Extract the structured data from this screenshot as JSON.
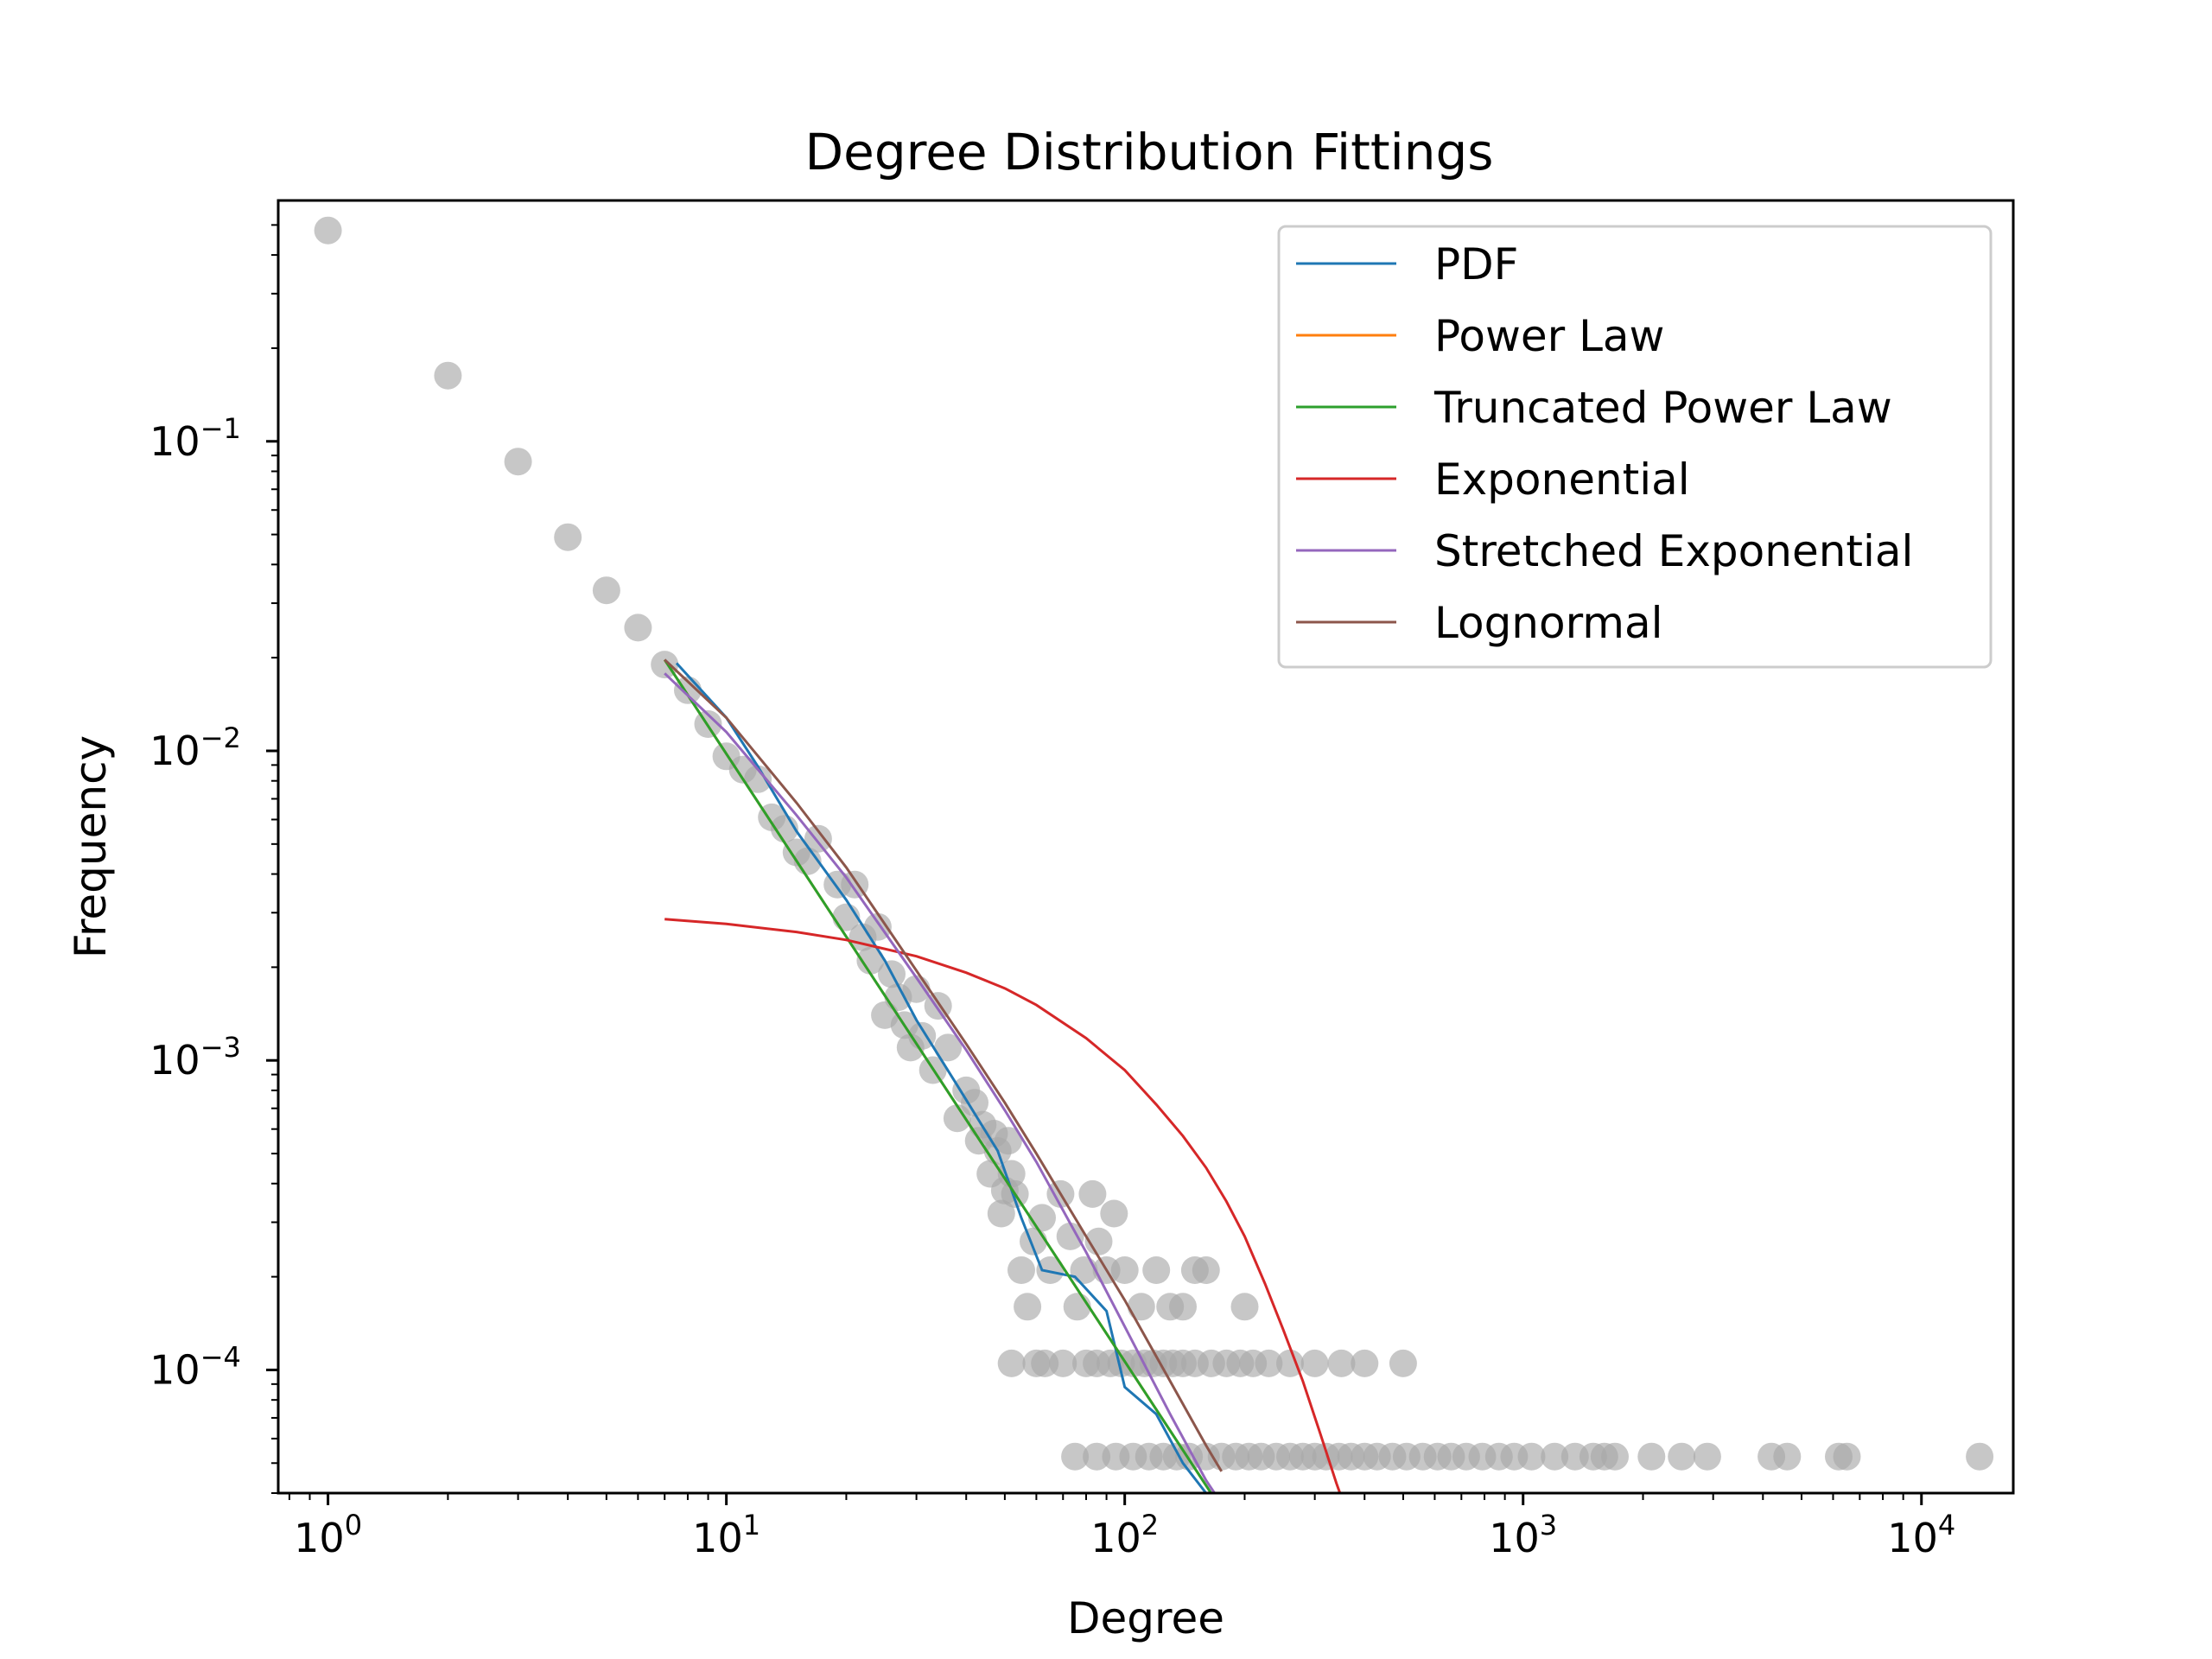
{
  "chart_data": {
    "type": "scatter",
    "title": "Degree Distribution Fittings",
    "xlabel": "Degree",
    "ylabel": "Frequency",
    "xscale": "log",
    "yscale": "log",
    "xlim": [
      0.75,
      17000
    ],
    "ylim": [
      4e-05,
      0.6
    ],
    "grid": false,
    "legend_position": "top-right",
    "x_ticks": [
      {
        "value": 1,
        "base": "10",
        "exp": "0"
      },
      {
        "value": 10,
        "base": "10",
        "exp": "1"
      },
      {
        "value": 100,
        "base": "10",
        "exp": "2"
      },
      {
        "value": 1000,
        "base": "10",
        "exp": "3"
      },
      {
        "value": 10000,
        "base": "10",
        "exp": "4"
      }
    ],
    "y_ticks": [
      {
        "value": 0.1,
        "base": "10",
        "exp": "−1"
      },
      {
        "value": 0.01,
        "base": "10",
        "exp": "−2"
      },
      {
        "value": 0.001,
        "base": "10",
        "exp": "−3"
      },
      {
        "value": 0.0001,
        "base": "10",
        "exp": "−4"
      }
    ],
    "scatter": {
      "color": "#a9a9a9",
      "opacity": 0.65,
      "points": [
        [
          1,
          0.48
        ],
        [
          2,
          0.163
        ],
        [
          3,
          0.086
        ],
        [
          4,
          0.049
        ],
        [
          5,
          0.033
        ],
        [
          6,
          0.025
        ],
        [
          7,
          0.019
        ],
        [
          8,
          0.0157
        ],
        [
          9,
          0.0122
        ],
        [
          10,
          0.0096
        ],
        [
          11,
          0.0087
        ],
        [
          12,
          0.0081
        ],
        [
          13,
          0.0061
        ],
        [
          14,
          0.0056
        ],
        [
          15,
          0.0047
        ],
        [
          16,
          0.0044
        ],
        [
          17,
          0.0052
        ],
        [
          19,
          0.0037
        ],
        [
          20,
          0.0029
        ],
        [
          21,
          0.0037
        ],
        [
          22,
          0.0025
        ],
        [
          23,
          0.0021
        ],
        [
          24,
          0.0027
        ],
        [
          25,
          0.0014
        ],
        [
          26,
          0.0019
        ],
        [
          27,
          0.0016
        ],
        [
          28,
          0.0013
        ],
        [
          29,
          0.0011
        ],
        [
          30,
          0.0017
        ],
        [
          31,
          0.0012
        ],
        [
          33,
          0.00093
        ],
        [
          34,
          0.0015
        ],
        [
          36,
          0.0011
        ],
        [
          38,
          0.00065
        ],
        [
          40,
          0.0008
        ],
        [
          42,
          0.00073
        ],
        [
          43,
          0.00055
        ],
        [
          44,
          0.00062
        ],
        [
          46,
          0.00043
        ],
        [
          47,
          0.00058
        ],
        [
          48,
          0.00051
        ],
        [
          49,
          0.00032
        ],
        [
          50,
          0.00038
        ],
        [
          51,
          0.00055
        ],
        [
          52,
          0.00043
        ],
        [
          53,
          0.00037
        ],
        [
          55,
          0.00021
        ],
        [
          57,
          0.00016
        ],
        [
          59,
          0.00026
        ],
        [
          62,
          0.00031
        ],
        [
          65,
          0.00021
        ],
        [
          69,
          0.00037
        ],
        [
          73,
          0.00027
        ],
        [
          76,
          0.00016
        ],
        [
          79,
          0.00021
        ],
        [
          83,
          0.00037
        ],
        [
          86,
          0.00026
        ],
        [
          90,
          0.00021
        ],
        [
          94,
          0.00032
        ],
        [
          100,
          0.00021
        ],
        [
          110,
          0.00016
        ],
        [
          120,
          0.00021
        ],
        [
          130,
          0.00016
        ],
        [
          140,
          0.00016
        ],
        [
          150,
          0.00021
        ],
        [
          160,
          0.00021
        ],
        [
          200,
          0.00016
        ],
        [
          52,
          0.000105
        ],
        [
          60,
          0.000105
        ],
        [
          63,
          0.000105
        ],
        [
          70,
          0.000105
        ],
        [
          80,
          0.000105
        ],
        [
          85,
          0.000105
        ],
        [
          92,
          0.000105
        ],
        [
          98,
          0.000105
        ],
        [
          105,
          0.000105
        ],
        [
          112,
          0.000105
        ],
        [
          118,
          0.000105
        ],
        [
          125,
          0.000105
        ],
        [
          132,
          0.000105
        ],
        [
          140,
          0.000105
        ],
        [
          150,
          0.000105
        ],
        [
          165,
          0.000105
        ],
        [
          180,
          0.000105
        ],
        [
          195,
          0.000105
        ],
        [
          210,
          0.000105
        ],
        [
          230,
          0.000105
        ],
        [
          260,
          0.000105
        ],
        [
          300,
          0.000105
        ],
        [
          350,
          0.000105
        ],
        [
          400,
          0.000105
        ],
        [
          500,
          0.000105
        ],
        [
          75,
          5.25e-05
        ],
        [
          85,
          5.25e-05
        ],
        [
          95,
          5.25e-05
        ],
        [
          105,
          5.25e-05
        ],
        [
          115,
          5.25e-05
        ],
        [
          125,
          5.25e-05
        ],
        [
          135,
          5.25e-05
        ],
        [
          145,
          5.25e-05
        ],
        [
          160,
          5.25e-05
        ],
        [
          175,
          5.25e-05
        ],
        [
          190,
          5.25e-05
        ],
        [
          205,
          5.25e-05
        ],
        [
          220,
          5.25e-05
        ],
        [
          240,
          5.25e-05
        ],
        [
          260,
          5.25e-05
        ],
        [
          280,
          5.25e-05
        ],
        [
          300,
          5.25e-05
        ],
        [
          320,
          5.25e-05
        ],
        [
          345,
          5.25e-05
        ],
        [
          370,
          5.25e-05
        ],
        [
          400,
          5.25e-05
        ],
        [
          430,
          5.25e-05
        ],
        [
          470,
          5.25e-05
        ],
        [
          510,
          5.25e-05
        ],
        [
          560,
          5.25e-05
        ],
        [
          610,
          5.25e-05
        ],
        [
          660,
          5.25e-05
        ],
        [
          720,
          5.25e-05
        ],
        [
          790,
          5.25e-05
        ],
        [
          870,
          5.25e-05
        ],
        [
          950,
          5.25e-05
        ],
        [
          1050,
          5.25e-05
        ],
        [
          1200,
          5.25e-05
        ],
        [
          1350,
          5.25e-05
        ],
        [
          1500,
          5.25e-05
        ],
        [
          1600,
          5.25e-05
        ],
        [
          1700,
          5.25e-05
        ],
        [
          2100,
          5.25e-05
        ],
        [
          2500,
          5.25e-05
        ],
        [
          2900,
          5.25e-05
        ],
        [
          4200,
          5.25e-05
        ],
        [
          4600,
          5.25e-05
        ],
        [
          6200,
          5.25e-05
        ],
        [
          6500,
          5.25e-05
        ],
        [
          14000,
          5.25e-05
        ]
      ]
    },
    "series": [
      {
        "name": "PDF",
        "color": "#1f77b4",
        "points": [
          [
            7.5,
            0.0192
          ],
          [
            10,
            0.0128
          ],
          [
            12,
            0.0089
          ],
          [
            15,
            0.0055
          ],
          [
            20,
            0.0033
          ],
          [
            25,
            0.0021
          ],
          [
            30,
            0.00135
          ],
          [
            38,
            0.00083
          ],
          [
            48,
            0.00051
          ],
          [
            55,
            0.00031
          ],
          [
            62,
            0.00021
          ],
          [
            75,
            0.0002
          ],
          [
            90,
            0.000155
          ],
          [
            100,
            8.8e-05
          ],
          [
            120,
            7.2e-05
          ],
          [
            140,
            5e-05
          ],
          [
            160,
            4e-05
          ]
        ]
      },
      {
        "name": "Power Law",
        "color": "#ff7f0e",
        "points": [
          [
            7,
            0.0197
          ],
          [
            170,
            3.76e-05
          ]
        ]
      },
      {
        "name": "Truncated Power Law",
        "color": "#2ca02c",
        "points": [
          [
            7,
            0.0197
          ],
          [
            170,
            3.76e-05
          ]
        ]
      },
      {
        "name": "Exponential",
        "color": "#d62728",
        "points": [
          [
            7,
            0.00286
          ],
          [
            10,
            0.00276
          ],
          [
            15,
            0.0026
          ],
          [
            20,
            0.00245
          ],
          [
            30,
            0.00217
          ],
          [
            40,
            0.00192
          ],
          [
            50,
            0.00171
          ],
          [
            60,
            0.00151
          ],
          [
            80,
            0.00118
          ],
          [
            100,
            0.00093
          ],
          [
            120,
            0.00072
          ],
          [
            140,
            0.00057
          ],
          [
            160,
            0.00045
          ],
          [
            180,
            0.00035
          ],
          [
            200,
            0.00027
          ],
          [
            225,
            0.00019
          ],
          [
            250,
            0.000135
          ],
          [
            280,
            9.2e-05
          ],
          [
            310,
            6.2e-05
          ],
          [
            340,
            4.3e-05
          ],
          [
            360,
            3.5e-05
          ]
        ]
      },
      {
        "name": "Stretched Exponential",
        "color": "#9467bd",
        "points": [
          [
            7,
            0.0178
          ],
          [
            10,
            0.0115
          ],
          [
            15,
            0.0062
          ],
          [
            20,
            0.0039
          ],
          [
            30,
            0.00185
          ],
          [
            40,
            0.00108
          ],
          [
            50,
            0.00069
          ],
          [
            60,
            0.00047
          ],
          [
            80,
            0.00024
          ],
          [
            100,
            0.000138
          ],
          [
            130,
            7.2e-05
          ],
          [
            160,
            4.4e-05
          ],
          [
            175,
            3.7e-05
          ]
        ]
      },
      {
        "name": "Lognormal",
        "color": "#8c564b",
        "points": [
          [
            7,
            0.0197
          ],
          [
            10,
            0.0128
          ],
          [
            15,
            0.0068
          ],
          [
            20,
            0.0042
          ],
          [
            30,
            0.00195
          ],
          [
            40,
            0.00113
          ],
          [
            50,
            0.00073
          ],
          [
            60,
            0.0005
          ],
          [
            80,
            0.00027
          ],
          [
            100,
            0.000168
          ],
          [
            130,
            9.2e-05
          ],
          [
            160,
            5.7e-05
          ],
          [
            175,
            4.7e-05
          ]
        ]
      }
    ]
  }
}
